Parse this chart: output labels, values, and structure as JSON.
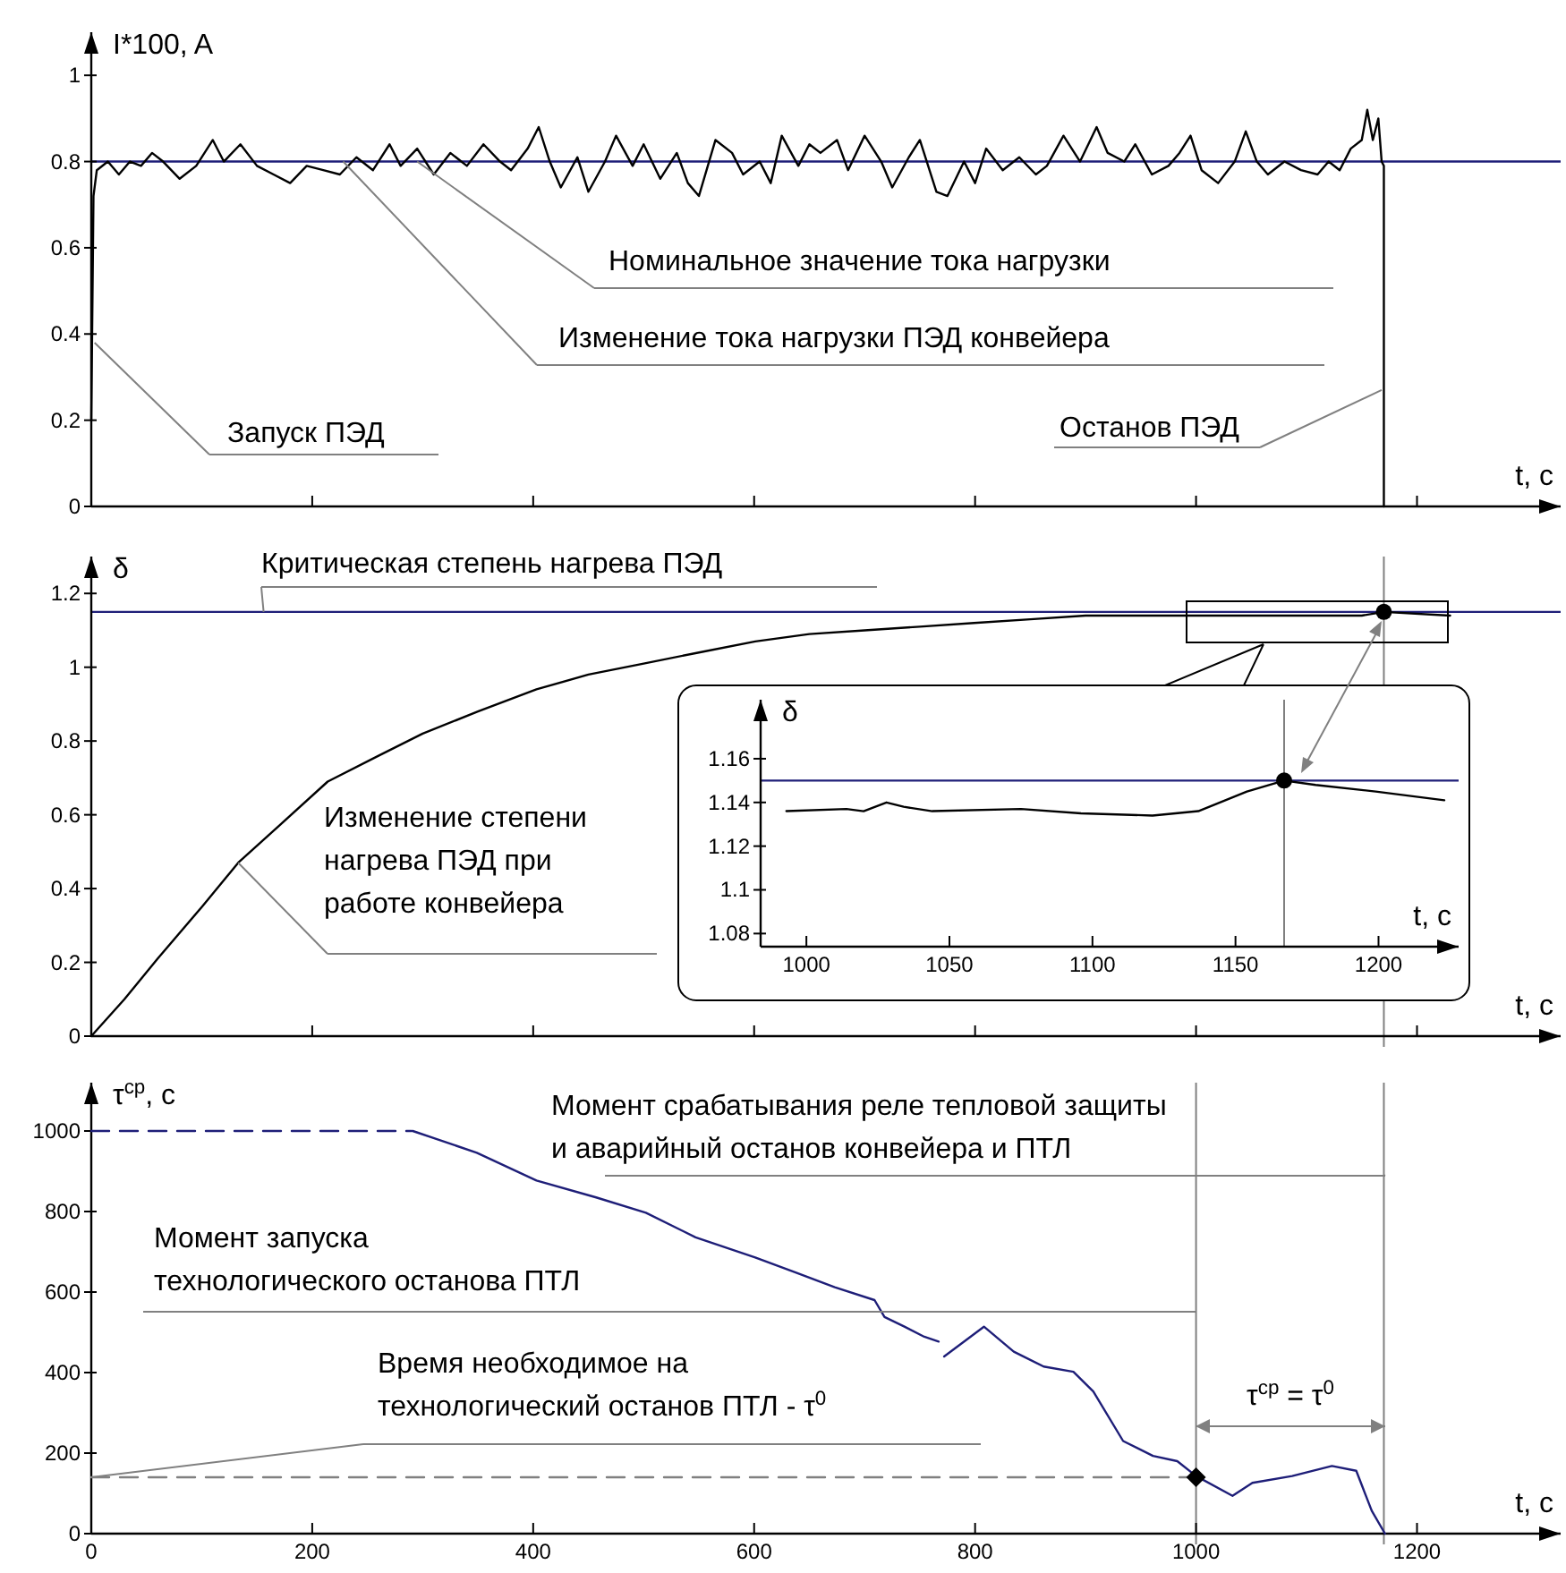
{
  "chart_data": [
    {
      "type": "line",
      "ylabel": "I*100, A",
      "xlabel": "t, с",
      "xlim": [
        0,
        1330
      ],
      "ylim": [
        0,
        1.1
      ],
      "xticks": [
        200,
        400,
        600,
        800,
        1000,
        1200
      ],
      "yticks": [
        0,
        0.2,
        0.4,
        0.6,
        0.8,
        1
      ],
      "tick_labels": "y",
      "series": [
        {
          "type": "line",
          "color": "#000000",
          "x": [
            0,
            2,
            5,
            15,
            25,
            35,
            45,
            55,
            65,
            80,
            95,
            110,
            120,
            135,
            150,
            165,
            180,
            195,
            210,
            225,
            240,
            255,
            270,
            280,
            295,
            310,
            325,
            340,
            355,
            370,
            380,
            395,
            405,
            415,
            425,
            440,
            450,
            465,
            475,
            490,
            500,
            515,
            530,
            540,
            550,
            565,
            580,
            590,
            605,
            615,
            625,
            640,
            650,
            660,
            675,
            685,
            700,
            715,
            725,
            740,
            750,
            765,
            775,
            790,
            800,
            810,
            825,
            840,
            855,
            865,
            880,
            895,
            910,
            920,
            935,
            945,
            960,
            975,
            985,
            995,
            1005,
            1020,
            1035,
            1045,
            1055,
            1065,
            1080,
            1095,
            1110,
            1120,
            1130,
            1140,
            1150,
            1155,
            1160,
            1165,
            1168,
            1170,
            1170
          ],
          "values": [
            0.2,
            0.72,
            0.78,
            0.8,
            0.77,
            0.8,
            0.79,
            0.82,
            0.8,
            0.76,
            0.79,
            0.85,
            0.8,
            0.84,
            0.79,
            0.77,
            0.75,
            0.79,
            0.78,
            0.77,
            0.81,
            0.78,
            0.84,
            0.79,
            0.83,
            0.77,
            0.82,
            0.79,
            0.84,
            0.8,
            0.78,
            0.83,
            0.88,
            0.8,
            0.74,
            0.81,
            0.73,
            0.8,
            0.86,
            0.79,
            0.84,
            0.76,
            0.82,
            0.75,
            0.72,
            0.85,
            0.82,
            0.77,
            0.8,
            0.75,
            0.86,
            0.79,
            0.84,
            0.82,
            0.85,
            0.78,
            0.86,
            0.8,
            0.74,
            0.81,
            0.85,
            0.73,
            0.72,
            0.8,
            0.75,
            0.83,
            0.78,
            0.81,
            0.77,
            0.79,
            0.86,
            0.8,
            0.88,
            0.82,
            0.8,
            0.84,
            0.77,
            0.79,
            0.82,
            0.86,
            0.78,
            0.75,
            0.8,
            0.87,
            0.8,
            0.77,
            0.8,
            0.78,
            0.77,
            0.8,
            0.78,
            0.83,
            0.85,
            0.92,
            0.85,
            0.9,
            0.8,
            0.79,
            0
          ]
        }
      ],
      "ref_lines": [
        {
          "axis": "y",
          "value": 0.8,
          "color": "#1e1e78"
        }
      ],
      "annotations": [
        {
          "text": "Номинальное значение тока нагрузки",
          "x": 295,
          "y": 0.8
        },
        {
          "text": "Изменение тока нагрузки ПЭД конвейера",
          "x": 228,
          "y": 0.8
        },
        {
          "text": "Запуск ПЭД",
          "x": 3,
          "y": 0.38
        },
        {
          "text": "Останов ПЭД",
          "x": 1168,
          "y": 0.27
        }
      ]
    },
    {
      "type": "line",
      "ylabel": "δ",
      "xlabel": "t, с",
      "xlim": [
        0,
        1330
      ],
      "ylim": [
        0,
        1.3
      ],
      "xticks": [
        200,
        400,
        600,
        800,
        1000,
        1200
      ],
      "yticks": [
        0,
        0.2,
        0.4,
        0.6,
        0.8,
        1,
        1.2
      ],
      "tick_labels": "y",
      "series": [
        {
          "type": "line",
          "color": "#000000",
          "x": [
            0,
            30,
            60,
            100,
            133,
            170,
            214,
            260,
            300,
            350,
            403,
            450,
            500,
            550,
            601,
            650,
            700,
            750,
            799,
            850,
            900,
            1000,
            1050,
            1100,
            1150,
            1170,
            1230
          ],
          "values": [
            0,
            0.1,
            0.21,
            0.35,
            0.47,
            0.57,
            0.69,
            0.76,
            0.82,
            0.88,
            0.94,
            0.98,
            1.01,
            1.04,
            1.07,
            1.09,
            1.1,
            1.11,
            1.12,
            1.13,
            1.14,
            1.14,
            1.14,
            1.14,
            1.14,
            1.15,
            1.14
          ]
        },
        {
          "type": "scatter",
          "marker": "circle",
          "color": "#000000",
          "x": [
            1170
          ],
          "values": [
            1.15
          ]
        }
      ],
      "ref_lines": [
        {
          "axis": "y",
          "value": 1.15,
          "color": "#1e1e78"
        },
        {
          "axis": "x",
          "value": 1170,
          "color": "#808080"
        }
      ],
      "annotations": [
        {
          "text": "Критическая степень нагрева ПЭД",
          "x": 156,
          "y": 1.15
        },
        {
          "text": "Изменение степени\nнагрева ПЭД при\nработе конвейера",
          "x": 133,
          "y": 0.47
        }
      ]
    },
    {
      "type": "line",
      "ylabel": "δ",
      "xlabel": "t, с",
      "xlim": [
        984,
        1228
      ],
      "ylim": [
        1.074,
        1.187
      ],
      "xticks": [
        1000,
        1050,
        1100,
        1150,
        1200
      ],
      "yticks": [
        1.08,
        1.1,
        1.12,
        1.14,
        1.16
      ],
      "series": [
        {
          "type": "line",
          "color": "#000000",
          "x": [
            993,
            1014,
            1020,
            1028,
            1034,
            1044,
            1075,
            1096,
            1121,
            1137,
            1154,
            1167,
            1178,
            1199,
            1223
          ],
          "values": [
            1.136,
            1.137,
            1.136,
            1.14,
            1.138,
            1.136,
            1.137,
            1.135,
            1.134,
            1.136,
            1.145,
            1.15,
            1.148,
            1.145,
            1.141
          ]
        },
        {
          "type": "scatter",
          "marker": "circle",
          "color": "#000000",
          "x": [
            1167
          ],
          "values": [
            1.15
          ]
        }
      ],
      "ref_lines": [
        {
          "axis": "y",
          "value": 1.15,
          "color": "#1e1e78"
        },
        {
          "axis": "x",
          "value": 1167,
          "color": "#808080"
        }
      ]
    },
    {
      "type": "line",
      "ylabel": "τ$^{ср}$, с",
      "xlabel": "t, с",
      "xlim": [
        0,
        1330
      ],
      "ylim": [
        0,
        1120
      ],
      "xticks": [
        0,
        200,
        400,
        600,
        800,
        1000,
        1200
      ],
      "yticks": [
        0,
        200,
        400,
        600,
        800,
        1000
      ],
      "series": [
        {
          "type": "line",
          "color": "#1e1e78",
          "line_style": "dashed",
          "x": [
            0,
            290
          ],
          "values": [
            1000,
            1000
          ]
        },
        {
          "type": "line",
          "color": "#808080",
          "line_style": "dashed",
          "x": [
            0,
            1000
          ],
          "values": [
            140,
            140
          ]
        },
        {
          "type": "line",
          "color": "#1e1e78",
          "x": [
            291,
            349,
            403,
            457,
            502,
            547,
            601,
            637,
            673,
            709,
            718,
            736,
            754,
            767,
            770,
            772,
            808,
            835,
            862,
            889,
            907,
            934,
            961,
            983,
            1000,
            1033,
            1051,
            1087,
            1123,
            1145,
            1159,
            1171
          ],
          "values": [
            1000,
            946,
            877,
            835,
            797,
            736,
            686,
            649,
            612,
            580,
            538,
            514,
            489,
            477,
            null,
            440,
            514,
            452,
            415,
            402,
            353,
            230,
            193,
            180,
            143,
            94,
            126,
            143,
            168,
            156,
            57,
            0
          ]
        },
        {
          "type": "scatter",
          "marker": "diamond",
          "color": "#000000",
          "x": [
            1000
          ],
          "values": [
            140
          ]
        }
      ],
      "ref_lines": [
        {
          "axis": "x",
          "value": 1170,
          "color": "#808080"
        },
        {
          "axis": "x",
          "value": 1000,
          "color": "#808080"
        }
      ],
      "annotations": [
        {
          "text": "Момент срабатывания реле тепловой защиты\nи аварийный останов конвейера и ПТЛ",
          "x": 1170,
          "y": 890
        },
        {
          "text": "Момент запуска\nтехнологического останова ПТЛ",
          "x": 1000,
          "y": 550
        },
        {
          "text": "Время необходимое на\nтехнологический останов ПТЛ - τ$^{0}$",
          "x": 0,
          "y": 140
        },
        "τ$^{ср}$ = τ$^{0}$"
      ]
    }
  ]
}
